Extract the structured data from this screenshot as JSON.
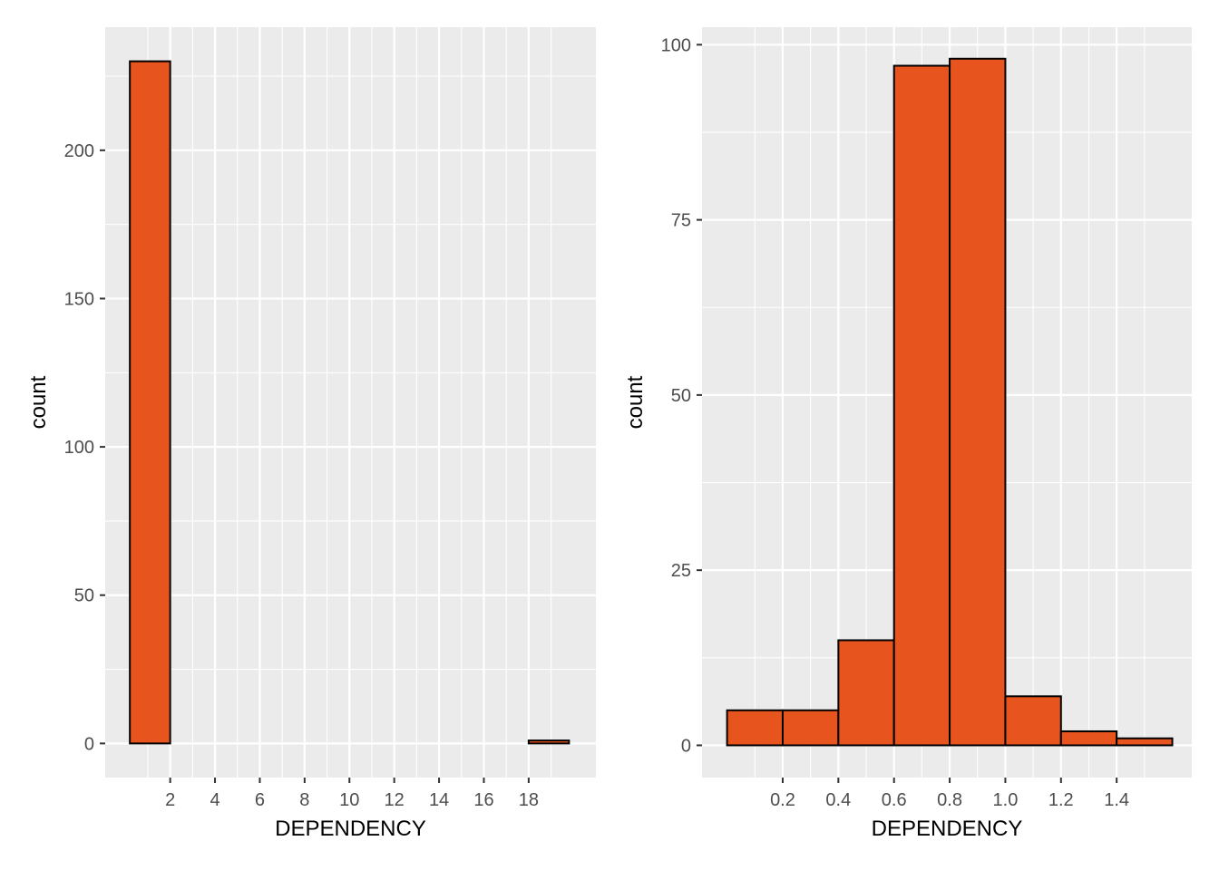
{
  "colors": {
    "panel_bg": "#EBEBEB",
    "grid": "#FFFFFF",
    "bar_fill": "#E8541E",
    "bar_stroke": "#000000",
    "tick_text": "#4D4D4D",
    "axis_text": "#000000"
  },
  "chart_data": [
    {
      "type": "bar",
      "xlabel": "DEPENDENCY",
      "ylabel": "count",
      "xlim": [
        -0.9,
        21.0
      ],
      "ylim": [
        -11.5,
        241.5
      ],
      "x_ticks": [
        2,
        4,
        6,
        8,
        10,
        12,
        14,
        16,
        18
      ],
      "x_tick_labels": [
        "2",
        "4",
        "6",
        "8",
        "10",
        "12",
        "14",
        "16",
        "18"
      ],
      "y_ticks": [
        0,
        50,
        100,
        150,
        200
      ],
      "y_tick_labels": [
        "0",
        "50",
        "100",
        "150",
        "200"
      ],
      "grid": true,
      "bins": [
        {
          "x0": 0.2,
          "x1": 2.0,
          "value": 230
        },
        {
          "x0": 18.0,
          "x1": 19.8,
          "value": 1
        }
      ]
    },
    {
      "type": "bar",
      "xlabel": "DEPENDENCY",
      "ylabel": "count",
      "xlim": [
        -0.09,
        1.67
      ],
      "ylim": [
        -4.6,
        102.5
      ],
      "x_ticks": [
        0.2,
        0.4,
        0.6,
        0.8,
        1.0,
        1.2,
        1.4
      ],
      "x_tick_labels": [
        "0.2",
        "0.4",
        "0.6",
        "0.8",
        "1.0",
        "1.2",
        "1.4"
      ],
      "y_ticks": [
        0,
        25,
        50,
        75,
        100
      ],
      "y_tick_labels": [
        "0",
        "25",
        "50",
        "75",
        "100"
      ],
      "grid": true,
      "bins": [
        {
          "x0": 0.0,
          "x1": 0.2,
          "value": 5
        },
        {
          "x0": 0.2,
          "x1": 0.4,
          "value": 5
        },
        {
          "x0": 0.4,
          "x1": 0.6,
          "value": 15
        },
        {
          "x0": 0.6,
          "x1": 0.8,
          "value": 97
        },
        {
          "x0": 0.8,
          "x1": 1.0,
          "value": 98
        },
        {
          "x0": 1.0,
          "x1": 1.2,
          "value": 7
        },
        {
          "x0": 1.2,
          "x1": 1.4,
          "value": 2
        },
        {
          "x0": 1.4,
          "x1": 1.6,
          "value": 1
        }
      ]
    }
  ]
}
